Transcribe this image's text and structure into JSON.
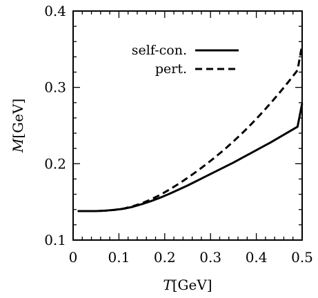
{
  "chart_data": {
    "type": "line",
    "xlabel": {
      "symbol": "T",
      "unit": "[GeV]"
    },
    "ylabel": {
      "symbol": "M",
      "unit": "[GeV]"
    },
    "xlim": [
      0,
      0.5
    ],
    "ylim": [
      0.1,
      0.4
    ],
    "xticks": [
      0,
      0.1,
      0.2,
      0.3,
      0.4,
      0.5
    ],
    "xtick_labels": [
      "0",
      "0.1",
      "0.2",
      "0.3",
      "0.4",
      "0.5"
    ],
    "yticks": [
      0.1,
      0.2,
      0.3,
      0.4
    ],
    "ytick_labels": [
      "0.1",
      "0.2",
      "0.3",
      "0.4"
    ],
    "grid": false,
    "legend_position": "top-right",
    "series": [
      {
        "name": "self-con.",
        "style": "solid",
        "color": "#000000",
        "x": [
          0.01,
          0.03,
          0.05,
          0.07,
          0.09,
          0.11,
          0.13,
          0.15,
          0.17,
          0.19,
          0.21,
          0.23,
          0.25,
          0.27,
          0.29,
          0.31,
          0.33,
          0.35,
          0.37,
          0.39,
          0.41,
          0.43,
          0.45,
          0.47,
          0.49,
          0.5
        ],
        "y": [
          0.138,
          0.138,
          0.138,
          0.1385,
          0.1395,
          0.141,
          0.1435,
          0.147,
          0.151,
          0.1555,
          0.1605,
          0.166,
          0.1715,
          0.1775,
          0.1835,
          0.1895,
          0.1955,
          0.2015,
          0.208,
          0.2145,
          0.221,
          0.2275,
          0.2345,
          0.2415,
          0.2485,
          0.279
        ]
      },
      {
        "name": "pert.",
        "style": "dashed",
        "color": "#000000",
        "x": [
          0.01,
          0.03,
          0.05,
          0.07,
          0.09,
          0.11,
          0.13,
          0.15,
          0.17,
          0.19,
          0.21,
          0.23,
          0.25,
          0.27,
          0.29,
          0.31,
          0.33,
          0.35,
          0.37,
          0.39,
          0.41,
          0.43,
          0.45,
          0.47,
          0.49,
          0.5
        ],
        "y": [
          0.138,
          0.138,
          0.138,
          0.1385,
          0.1395,
          0.1412,
          0.1442,
          0.1482,
          0.1532,
          0.1592,
          0.166,
          0.1735,
          0.1815,
          0.19,
          0.199,
          0.2085,
          0.2185,
          0.2292,
          0.2405,
          0.2525,
          0.2652,
          0.2785,
          0.2925,
          0.3072,
          0.3225,
          0.356
        ]
      }
    ]
  }
}
